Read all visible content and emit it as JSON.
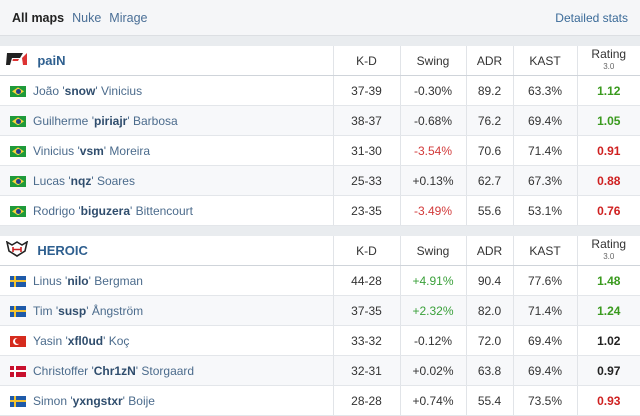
{
  "tabs": {
    "items": [
      "All maps",
      "Nuke",
      "Mirage"
    ],
    "active": "All maps",
    "detailed_stats": "Detailed stats"
  },
  "columns": {
    "kd": "K-D",
    "swing": "Swing",
    "adr": "ADR",
    "kast": "KAST",
    "rating": "Rating",
    "rating_version": "3.0"
  },
  "colors": {
    "positive": "#3aa03a",
    "negative": "#d23a3a",
    "rating_good": "#3a9a1e",
    "rating_bad": "#cf2020",
    "link": "#2e5f8f"
  },
  "teams": [
    {
      "name": "paiN",
      "logo_icon": "pain-logo-icon",
      "players": [
        {
          "flag": "br",
          "first": "João",
          "nick": "snow",
          "last": "Vinicius",
          "kd": "37-39",
          "swing": "-0.30%",
          "swing_tone": "neu",
          "adr": "89.2",
          "kast": "63.3%",
          "rating": "1.12",
          "rating_tone": "good"
        },
        {
          "flag": "br",
          "first": "Guilherme",
          "nick": "piriajr",
          "last": "Barbosa",
          "kd": "38-37",
          "swing": "-0.68%",
          "swing_tone": "neu",
          "adr": "76.2",
          "kast": "69.4%",
          "rating": "1.05",
          "rating_tone": "good"
        },
        {
          "flag": "br",
          "first": "Vinicius",
          "nick": "vsm",
          "last": "Moreira",
          "kd": "31-30",
          "swing": "-3.54%",
          "swing_tone": "neg",
          "adr": "70.6",
          "kast": "71.4%",
          "rating": "0.91",
          "rating_tone": "bad"
        },
        {
          "flag": "br",
          "first": "Lucas",
          "nick": "nqz",
          "last": "Soares",
          "kd": "25-33",
          "swing": "+0.13%",
          "swing_tone": "neu",
          "adr": "62.7",
          "kast": "67.3%",
          "rating": "0.88",
          "rating_tone": "bad"
        },
        {
          "flag": "br",
          "first": "Rodrigo",
          "nick": "biguzera",
          "last": "Bittencourt",
          "kd": "23-35",
          "swing": "-3.49%",
          "swing_tone": "neg",
          "adr": "55.6",
          "kast": "53.1%",
          "rating": "0.76",
          "rating_tone": "bad"
        }
      ]
    },
    {
      "name": "HEROIC",
      "logo_icon": "heroic-logo-icon",
      "players": [
        {
          "flag": "se",
          "first": "Linus",
          "nick": "nilo",
          "last": "Bergman",
          "kd": "44-28",
          "swing": "+4.91%",
          "swing_tone": "pos",
          "adr": "90.4",
          "kast": "77.6%",
          "rating": "1.48",
          "rating_tone": "good"
        },
        {
          "flag": "se",
          "first": "Tim",
          "nick": "susp",
          "last": "Ångström",
          "kd": "37-35",
          "swing": "+2.32%",
          "swing_tone": "pos",
          "adr": "82.0",
          "kast": "71.4%",
          "rating": "1.24",
          "rating_tone": "good"
        },
        {
          "flag": "tr",
          "first": "Yasin",
          "nick": "xfl0ud",
          "last": "Koç",
          "kd": "33-32",
          "swing": "-0.12%",
          "swing_tone": "neu",
          "adr": "72.0",
          "kast": "69.4%",
          "rating": "1.02",
          "rating_tone": "neu"
        },
        {
          "flag": "dk",
          "first": "Christoffer",
          "nick": "Chr1zN",
          "last": "Storgaard",
          "kd": "32-31",
          "swing": "+0.02%",
          "swing_tone": "neu",
          "adr": "63.8",
          "kast": "69.4%",
          "rating": "0.97",
          "rating_tone": "neu"
        },
        {
          "flag": "se",
          "first": "Simon",
          "nick": "yxngstxr",
          "last": "Boije",
          "kd": "28-28",
          "swing": "+0.74%",
          "swing_tone": "neu",
          "adr": "55.4",
          "kast": "73.5%",
          "rating": "0.93",
          "rating_tone": "bad"
        }
      ]
    }
  ]
}
